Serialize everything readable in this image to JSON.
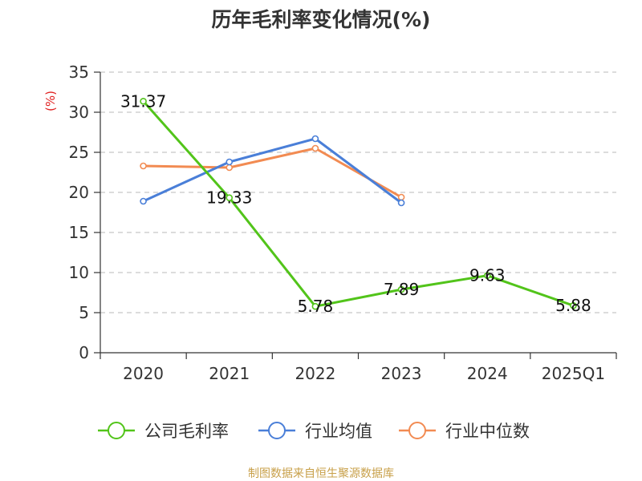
{
  "chart_data": {
    "type": "line",
    "title": "历年毛利率变化情况(%)",
    "ylabel": "(%)",
    "xlabel": "",
    "categories": [
      "2020",
      "2021",
      "2022",
      "2023",
      "2024",
      "2025Q1"
    ],
    "ylim": [
      0,
      35
    ],
    "yticks": [
      0,
      5,
      10,
      15,
      20,
      25,
      30,
      35
    ],
    "grid": "horizontal-dashed",
    "legend_position": "bottom",
    "series": [
      {
        "name": "公司毛利率",
        "color": "#52c41a",
        "values": [
          31.37,
          19.33,
          5.78,
          7.89,
          9.63,
          5.88
        ],
        "labels": [
          "31.37",
          "19.33",
          "5.78",
          "7.89",
          "9.63",
          "5.88"
        ]
      },
      {
        "name": "行业均值",
        "color": "#4a7fd8",
        "values": [
          18.9,
          23.8,
          26.7,
          18.7,
          null,
          null
        ]
      },
      {
        "name": "行业中位数",
        "color": "#f28b52",
        "values": [
          23.3,
          23.1,
          25.5,
          19.4,
          null,
          null
        ]
      }
    ]
  },
  "ylabel_color": "#e02020",
  "source": {
    "text": "制图数据来自恒生聚源数据库",
    "color": "#c8a04a"
  }
}
